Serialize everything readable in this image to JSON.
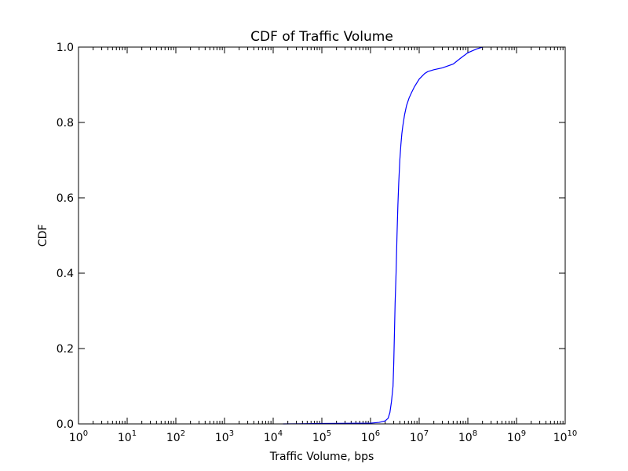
{
  "chart_data": {
    "type": "line",
    "title": "CDF of Traffic Volume",
    "xlabel": "Traffic Volume, bps",
    "ylabel": "CDF",
    "xscale": "log",
    "xlim": [
      1,
      10000000000
    ],
    "ylim": [
      0,
      1
    ],
    "grid": false,
    "colors": {
      "line": "#0000ff",
      "axes": "#000000",
      "background": "#ffffff"
    },
    "x_ticks": [
      {
        "base": "10",
        "exp": "0"
      },
      {
        "base": "10",
        "exp": "1"
      },
      {
        "base": "10",
        "exp": "2"
      },
      {
        "base": "10",
        "exp": "3"
      },
      {
        "base": "10",
        "exp": "4"
      },
      {
        "base": "10",
        "exp": "5"
      },
      {
        "base": "10",
        "exp": "6"
      },
      {
        "base": "10",
        "exp": "7"
      },
      {
        "base": "10",
        "exp": "8"
      },
      {
        "base": "10",
        "exp": "9"
      },
      {
        "base": "10",
        "exp": "10"
      }
    ],
    "y_ticks": [
      "0.0",
      "0.2",
      "0.4",
      "0.6",
      "0.8",
      "1.0"
    ],
    "series": [
      {
        "x": [
          16000,
          100000,
          1000000,
          1500000,
          2000000,
          2300000,
          2500000,
          2700000,
          2900000,
          3000000,
          3100000,
          3200000,
          3350000,
          3500000,
          3650000,
          3800000,
          4000000,
          4200000,
          4400000,
          4600000,
          5000000,
          5500000,
          6200000,
          7000000,
          8000000,
          10000000,
          13000000,
          15000000,
          20000000,
          30000000,
          50000000,
          70000000,
          100000000,
          150000000,
          200000000
        ],
        "y": [
          0.0,
          0.001,
          0.002,
          0.004,
          0.008,
          0.015,
          0.03,
          0.06,
          0.1,
          0.16,
          0.24,
          0.32,
          0.4,
          0.5,
          0.58,
          0.64,
          0.7,
          0.74,
          0.77,
          0.79,
          0.82,
          0.845,
          0.865,
          0.88,
          0.895,
          0.915,
          0.93,
          0.935,
          0.94,
          0.945,
          0.955,
          0.97,
          0.985,
          0.995,
          1.0
        ]
      }
    ]
  }
}
